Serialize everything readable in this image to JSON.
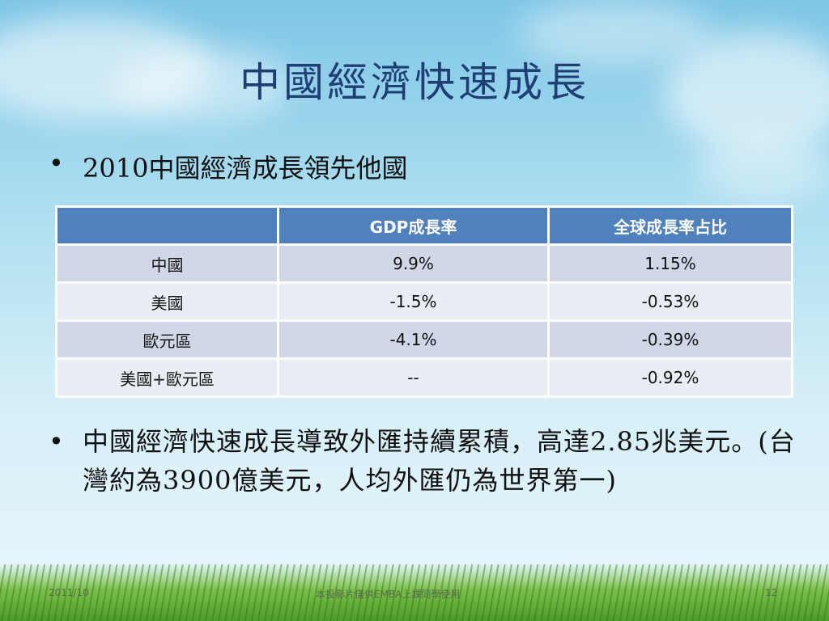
{
  "slide": {
    "title": "中國經濟快速成長",
    "bullet1": "2010中國經濟成長領先他國",
    "bullet2": "中國經濟快速成長導致外匯持續累積，高達2.85兆美元。(台灣約為3900億美元，人均外匯仍為世界第一)",
    "bullet_marker": "•"
  },
  "table": {
    "headers": [
      "",
      "GDP成長率",
      "全球成長率占比"
    ],
    "rows": [
      [
        "中國",
        "9.9%",
        "1.15%"
      ],
      [
        "美國",
        "-1.5%",
        "-0.53%"
      ],
      [
        "歐元區",
        "-4.1%",
        "-0.39%"
      ],
      [
        "美國+歐元區",
        "--",
        "-0.92%"
      ]
    ]
  },
  "footer": {
    "date": "2011/10",
    "note": "本投影片僅供EMBA上課同學使用",
    "page": "12"
  },
  "colors": {
    "title": "#1f3f74",
    "table_header": "#4f81bd",
    "row_odd": "#d0d8e8",
    "row_even": "#e9edf4"
  }
}
